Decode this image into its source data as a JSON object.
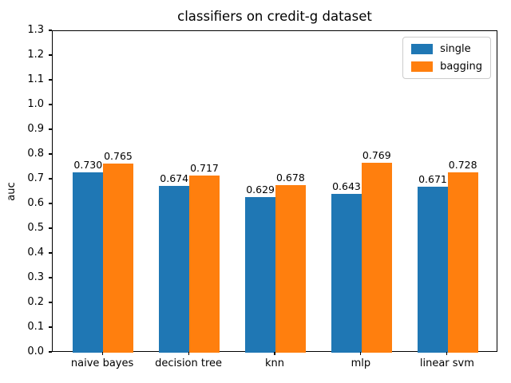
{
  "chart_data": {
    "type": "bar",
    "title": "classifiers on credit-g dataset",
    "categories": [
      "naive bayes",
      "decision tree",
      "knn",
      "mlp",
      "linear svm"
    ],
    "series": [
      {
        "name": "single",
        "color": "#1f77b4",
        "values": [
          0.73,
          0.674,
          0.629,
          0.643,
          0.671
        ]
      },
      {
        "name": "bagging",
        "color": "#ff7f0e",
        "values": [
          0.765,
          0.717,
          0.678,
          0.769,
          0.728
        ]
      }
    ],
    "xlabel": "",
    "ylabel": "auc",
    "ylim": [
      0.0,
      1.3
    ],
    "ytick_step": 0.1,
    "bar_width_units": 0.35,
    "value_label_decimals": 3,
    "grid": false,
    "legend_position": "upper right"
  },
  "colors": {
    "background": "#ffffff",
    "spine": "#000000",
    "text": "#000000",
    "legend_border": "#cccccc"
  }
}
